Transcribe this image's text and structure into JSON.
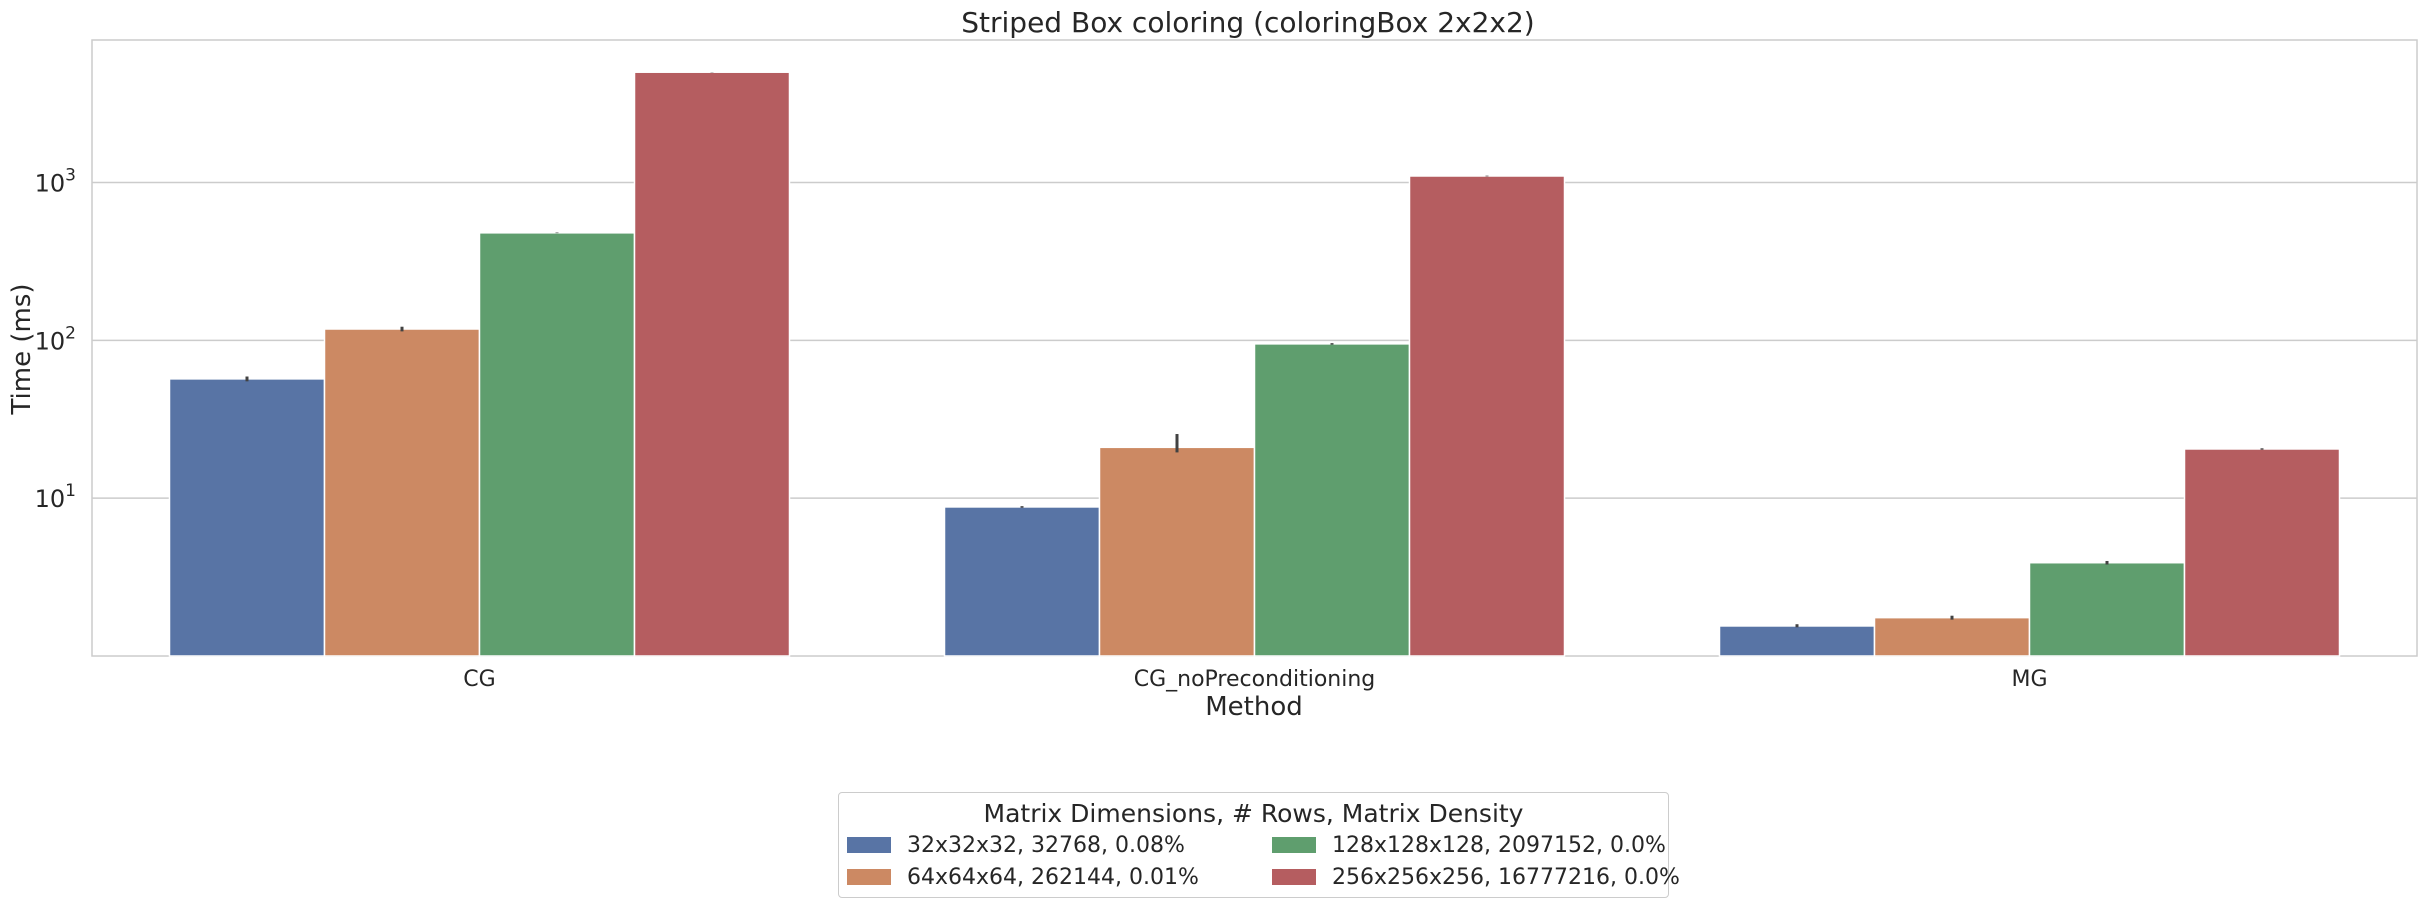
{
  "chart_data": {
    "type": "bar",
    "title": "Striped Box coloring (coloringBox 2x2x2)",
    "xlabel": "Method",
    "ylabel": "Time (ms)",
    "yscale": "log",
    "ylim": [
      1,
      8000
    ],
    "yticks": [
      {
        "value": 10,
        "base": "10",
        "exp": "1"
      },
      {
        "value": 100,
        "base": "10",
        "exp": "2"
      },
      {
        "value": 1000,
        "base": "10",
        "exp": "3"
      }
    ],
    "grid": "horizontal",
    "categories": [
      "CG",
      "CG_noPreconditioning",
      "MG"
    ],
    "series": [
      {
        "name": "32x32x32, 32768, 0.08%",
        "color": "#5874a5",
        "values": [
          57,
          8.8,
          1.55
        ],
        "err": [
          [
            55,
            59
          ],
          [
            8.7,
            8.9
          ],
          [
            1.52,
            1.59
          ]
        ]
      },
      {
        "name": "64x64x64, 262144, 0.01%",
        "color": "#cc8963",
        "values": [
          118,
          21,
          1.75
        ],
        "err": [
          [
            114,
            122
          ],
          [
            19.5,
            25.5
          ],
          [
            1.7,
            1.8
          ]
        ]
      },
      {
        "name": "128x128x128, 2097152, 0.0%",
        "color": "#5f9e6e",
        "values": [
          480,
          95,
          3.9
        ],
        "err": [
          [
            478,
            482
          ],
          [
            94,
            96
          ],
          [
            3.8,
            4.0
          ]
        ]
      },
      {
        "name": "256x256x256, 16777216, 0.0%",
        "color": "#b55d60",
        "values": [
          5000,
          1100,
          20.5
        ],
        "err": [
          [
            4990,
            5010
          ],
          [
            1095,
            1105
          ],
          [
            20.3,
            20.7
          ]
        ]
      }
    ],
    "legend": {
      "title": "Matrix Dimensions, # Rows, Matrix Density",
      "placement": "bottom-center",
      "columns": 2
    }
  }
}
